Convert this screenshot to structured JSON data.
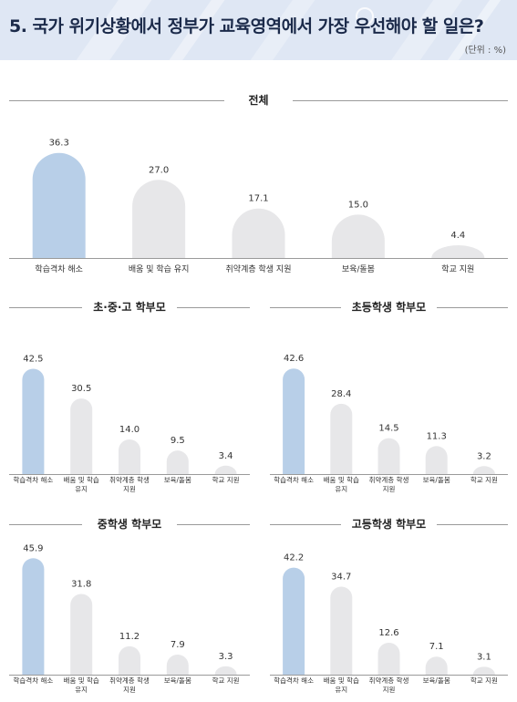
{
  "header": {
    "title": "5. 국가 위기상황에서 정부가 교육영역에서 가장 우선해야 할 일은?",
    "unit": "(단위 : %)"
  },
  "colors": {
    "highlight": "#b8cfe8",
    "bar": "#e7e7e9",
    "line": "#9a9a9a"
  },
  "chart_data": [
    {
      "type": "bar",
      "title": "전체",
      "categories": [
        "학습격차 해소",
        "배움 및 학습 유지",
        "취약계층 학생 지원",
        "보육/돌봄",
        "학교 지원"
      ],
      "values": [
        36.3,
        27.0,
        17.1,
        15.0,
        4.4
      ],
      "value_labels": [
        "36.3",
        "27.0",
        "17.1",
        "15.0",
        "4.4"
      ],
      "highlight_index": 0,
      "ylim": [
        0,
        40
      ]
    },
    {
      "type": "bar",
      "title": "초·중·고 학부모",
      "categories": [
        "학습격차 해소",
        "배움 및 학습 유지",
        "취약계층 학생 지원",
        "보육/돌봄",
        "학교 지원"
      ],
      "values": [
        42.5,
        30.5,
        14.0,
        9.5,
        3.4
      ],
      "value_labels": [
        "42.5",
        "30.5",
        "14.0",
        "9.5",
        "3.4"
      ],
      "highlight_index": 0,
      "ylim": [
        0,
        46
      ]
    },
    {
      "type": "bar",
      "title": "초등학생 학부모",
      "categories": [
        "학습격차 해소",
        "배움 및 학습 유지",
        "취약계층 학생 지원",
        "보육/돌봄",
        "학교 지원"
      ],
      "values": [
        42.6,
        28.4,
        14.5,
        11.3,
        3.2
      ],
      "value_labels": [
        "42.6",
        "28.4",
        "14.5",
        "11.3",
        "3.2"
      ],
      "highlight_index": 0,
      "ylim": [
        0,
        46
      ]
    },
    {
      "type": "bar",
      "title": "중학생 학부모",
      "categories": [
        "학습격차 해소",
        "배움 및 학습 유지",
        "취약계층 학생 지원",
        "보육/돌봄",
        "학교 지원"
      ],
      "values": [
        45.9,
        31.8,
        11.2,
        7.9,
        3.3
      ],
      "value_labels": [
        "45.9",
        "31.8",
        "11.2",
        "7.9",
        "3.3"
      ],
      "highlight_index": 0,
      "ylim": [
        0,
        46
      ]
    },
    {
      "type": "bar",
      "title": "고등학생 학부모",
      "categories": [
        "학습격차 해소",
        "배움 및 학습 유지",
        "취약계층 학생 지원",
        "보육/돌봄",
        "학교 지원"
      ],
      "values": [
        42.2,
        34.7,
        12.6,
        7.1,
        3.1
      ],
      "value_labels": [
        "42.2",
        "34.7",
        "12.6",
        "7.1",
        "3.1"
      ],
      "highlight_index": 0,
      "ylim": [
        0,
        46
      ]
    }
  ]
}
